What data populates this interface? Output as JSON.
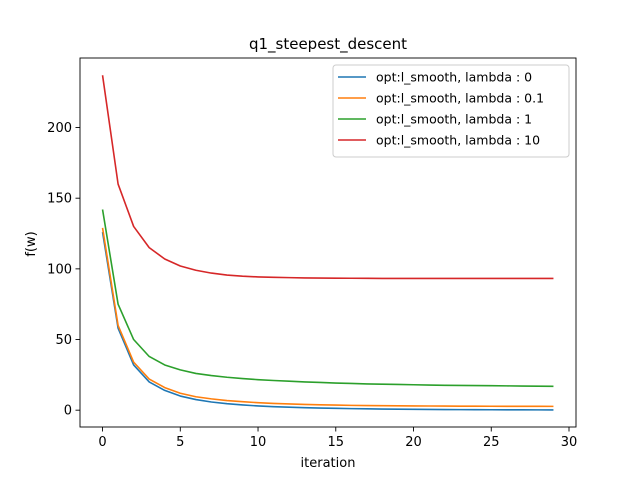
{
  "chart_data": {
    "type": "line",
    "title": "q1_steepest_descent",
    "xlabel": "iteration",
    "ylabel": "f(w)",
    "xlim": [
      -1.45,
      30.45
    ],
    "ylim": [
      -11.9,
      249.2
    ],
    "xticks": [
      0,
      5,
      10,
      15,
      20,
      25,
      30
    ],
    "yticks": [
      0,
      50,
      100,
      150,
      200
    ],
    "grid": false,
    "legend_position": "top-right",
    "x": [
      0,
      1,
      2,
      3,
      4,
      5,
      6,
      7,
      8,
      9,
      10,
      11,
      12,
      13,
      14,
      15,
      16,
      17,
      18,
      19,
      20,
      21,
      22,
      23,
      24,
      25,
      26,
      27,
      28,
      29
    ],
    "series": [
      {
        "name": "opt:l_smooth, lambda : 0",
        "color": "#1f77b4",
        "values": [
          126,
          58,
          32,
          20,
          14,
          10,
          7.5,
          5.8,
          4.6,
          3.7,
          3.0,
          2.5,
          2.1,
          1.8,
          1.5,
          1.3,
          1.1,
          0.95,
          0.8,
          0.7,
          0.6,
          0.5,
          0.45,
          0.4,
          0.35,
          0.3,
          0.27,
          0.24,
          0.22,
          0.2
        ]
      },
      {
        "name": "opt:l_smooth, lambda : 0.1",
        "color": "#ff7f0e",
        "values": [
          129,
          60,
          34,
          22,
          16,
          12,
          9.5,
          8.0,
          6.8,
          6.0,
          5.3,
          4.8,
          4.4,
          4.1,
          3.8,
          3.6,
          3.4,
          3.3,
          3.2,
          3.1,
          3.0,
          2.95,
          2.9,
          2.85,
          2.8,
          2.78,
          2.76,
          2.74,
          2.72,
          2.7
        ]
      },
      {
        "name": "opt:l_smooth, lambda : 1",
        "color": "#2ca02c",
        "values": [
          142,
          75,
          50,
          38,
          32,
          28.5,
          26,
          24.5,
          23.3,
          22.4,
          21.6,
          21.0,
          20.5,
          20.0,
          19.6,
          19.2,
          18.9,
          18.6,
          18.4,
          18.2,
          18.0,
          17.8,
          17.6,
          17.5,
          17.4,
          17.3,
          17.2,
          17.1,
          17.0,
          16.9
        ]
      },
      {
        "name": "opt:l_smooth, lambda : 10",
        "color": "#d62728",
        "values": [
          237,
          160,
          130,
          115,
          107,
          102,
          99,
          97,
          95.6,
          94.8,
          94.3,
          94.0,
          93.8,
          93.6,
          93.5,
          93.4,
          93.35,
          93.3,
          93.25,
          93.2,
          93.2,
          93.2,
          93.2,
          93.2,
          93.2,
          93.2,
          93.2,
          93.2,
          93.2,
          93.2
        ]
      }
    ]
  }
}
